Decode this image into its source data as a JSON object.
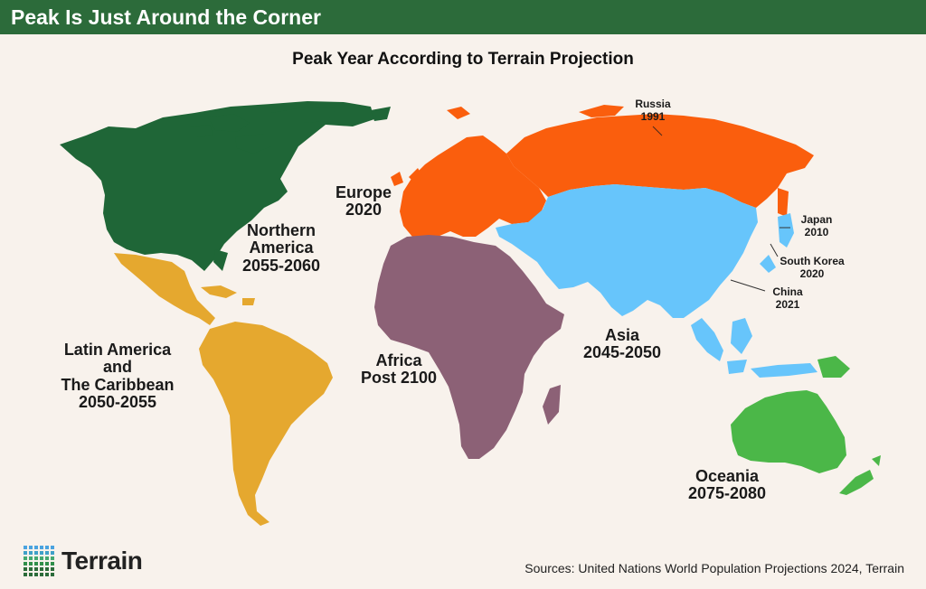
{
  "header": {
    "title": "Peak Is Just Around the Corner"
  },
  "map_title": "Peak Year According to Terrain Projection",
  "regions": [
    {
      "id": "northern-america",
      "lines": [
        "Northern",
        "America",
        "2055-2060"
      ],
      "color": "#1f6637"
    },
    {
      "id": "latin-america",
      "lines": [
        "Latin America",
        "and",
        "The Caribbean",
        "2050-2055"
      ],
      "color": "#e5a82f"
    },
    {
      "id": "europe",
      "lines": [
        "Europe",
        "2020"
      ],
      "color": "#fa5e0d"
    },
    {
      "id": "africa",
      "lines": [
        "Africa",
        "Post 2100"
      ],
      "color": "#8c6176"
    },
    {
      "id": "asia",
      "lines": [
        "Asia",
        "2045-2050"
      ],
      "color": "#67c5fb"
    },
    {
      "id": "oceania",
      "lines": [
        "Oceania",
        "2075-2080"
      ],
      "color": "#4bb748"
    }
  ],
  "callouts": [
    {
      "id": "russia",
      "lines": [
        "Russia",
        "1991"
      ]
    },
    {
      "id": "japan",
      "lines": [
        "Japan",
        "2010"
      ]
    },
    {
      "id": "south-korea",
      "lines": [
        "South Korea",
        "2020"
      ]
    },
    {
      "id": "china",
      "lines": [
        "China",
        "2021"
      ]
    }
  ],
  "brand": {
    "name": "Terrain"
  },
  "sources": "Sources: United Nations World Population Projections 2024, Terrain"
}
